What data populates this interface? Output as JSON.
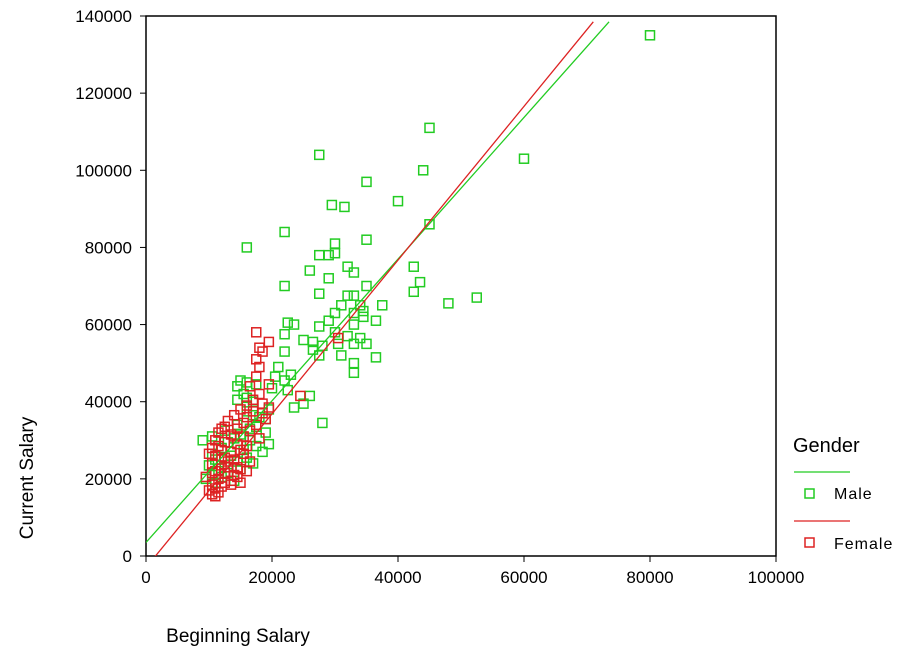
{
  "chart_data": {
    "type": "scatter",
    "title": "",
    "xlabel": "Beginning Salary",
    "ylabel": "Current Salary",
    "xlim": [
      0,
      100000
    ],
    "ylim": [
      0,
      140000
    ],
    "xticks": [
      0,
      20000,
      40000,
      60000,
      80000,
      100000
    ],
    "yticks": [
      0,
      20000,
      40000,
      60000,
      80000,
      100000,
      120000,
      140000
    ],
    "grid": false,
    "legend": {
      "title": "Gender",
      "position": "right"
    },
    "series": [
      {
        "name": "Male",
        "color": "#22cc22",
        "fit_line": {
          "x": [
            0,
            73500
          ],
          "y": [
            3500,
            138500
          ]
        },
        "points": [
          [
            80000,
            135000
          ],
          [
            45000,
            111000
          ],
          [
            27500,
            104000
          ],
          [
            60000,
            103000
          ],
          [
            44000,
            100000
          ],
          [
            35000,
            97000
          ],
          [
            40000,
            92000
          ],
          [
            29500,
            91000
          ],
          [
            31500,
            90500
          ],
          [
            45000,
            86000
          ],
          [
            22000,
            84000
          ],
          [
            35000,
            82000
          ],
          [
            30000,
            81000
          ],
          [
            16000,
            80000
          ],
          [
            29000,
            78000
          ],
          [
            27500,
            78000
          ],
          [
            30000,
            78500
          ],
          [
            32000,
            75000
          ],
          [
            42500,
            75000
          ],
          [
            26000,
            74000
          ],
          [
            33000,
            73500
          ],
          [
            29000,
            72000
          ],
          [
            43500,
            71000
          ],
          [
            22000,
            70000
          ],
          [
            35000,
            70000
          ],
          [
            42500,
            68500
          ],
          [
            27500,
            68000
          ],
          [
            32000,
            67500
          ],
          [
            33000,
            67500
          ],
          [
            52500,
            67000
          ],
          [
            48000,
            65500
          ],
          [
            31000,
            65000
          ],
          [
            34000,
            65000
          ],
          [
            37500,
            65000
          ],
          [
            34500,
            63500
          ],
          [
            30000,
            63000
          ],
          [
            33000,
            63000
          ],
          [
            34500,
            62000
          ],
          [
            29000,
            61000
          ],
          [
            36500,
            61000
          ],
          [
            22500,
            60500
          ],
          [
            23500,
            60000
          ],
          [
            33000,
            60000
          ],
          [
            27500,
            59500
          ],
          [
            30000,
            58000
          ],
          [
            22000,
            57500
          ],
          [
            32000,
            57000
          ],
          [
            34000,
            56500
          ],
          [
            25000,
            56000
          ],
          [
            26500,
            55500
          ],
          [
            30500,
            55000
          ],
          [
            33000,
            55000
          ],
          [
            35000,
            55000
          ],
          [
            28000,
            54500
          ],
          [
            26500,
            53500
          ],
          [
            22000,
            53000
          ],
          [
            31000,
            52000
          ],
          [
            27500,
            52000
          ],
          [
            36500,
            51500
          ],
          [
            33000,
            50000
          ],
          [
            21000,
            49000
          ],
          [
            33000,
            47500
          ],
          [
            23000,
            47000
          ],
          [
            20500,
            46500
          ],
          [
            22000,
            45500
          ],
          [
            15000,
            45500
          ],
          [
            16000,
            45000
          ],
          [
            17500,
            44500
          ],
          [
            14500,
            44000
          ],
          [
            20000,
            43500
          ],
          [
            22500,
            43000
          ],
          [
            15500,
            42000
          ],
          [
            26000,
            41500
          ],
          [
            16000,
            41000
          ],
          [
            14500,
            40500
          ],
          [
            17000,
            40000
          ],
          [
            25000,
            39500
          ],
          [
            23500,
            38500
          ],
          [
            19500,
            38000
          ],
          [
            16000,
            37500
          ],
          [
            17000,
            36500
          ],
          [
            18000,
            36000
          ],
          [
            19000,
            35500
          ],
          [
            28000,
            34500
          ],
          [
            14500,
            34000
          ],
          [
            17500,
            33500
          ],
          [
            16500,
            33000
          ],
          [
            12500,
            32500
          ],
          [
            19000,
            32000
          ],
          [
            15000,
            31500
          ],
          [
            10500,
            31000
          ],
          [
            14000,
            30500
          ],
          [
            9000,
            30000
          ],
          [
            16500,
            30000
          ],
          [
            13000,
            29500
          ],
          [
            19500,
            29000
          ],
          [
            17500,
            28500
          ],
          [
            12000,
            28000
          ],
          [
            15500,
            27500
          ],
          [
            18500,
            27000
          ],
          [
            10500,
            26500
          ],
          [
            13500,
            26000
          ],
          [
            16000,
            25500
          ],
          [
            11000,
            25000
          ],
          [
            14500,
            24500
          ],
          [
            17000,
            24000
          ],
          [
            10000,
            23500
          ],
          [
            12500,
            23000
          ],
          [
            15000,
            22500
          ],
          [
            11500,
            22000
          ],
          [
            13000,
            21500
          ],
          [
            10500,
            21000
          ],
          [
            12000,
            20500
          ],
          [
            9500,
            20000
          ],
          [
            14000,
            19500
          ],
          [
            11000,
            19000
          ]
        ]
      },
      {
        "name": "Female",
        "color": "#dd2222",
        "fit_line": {
          "x": [
            0,
            71000
          ],
          "y": [
            -3000,
            138500
          ]
        },
        "points": [
          [
            17500,
            58000
          ],
          [
            30500,
            56500
          ],
          [
            19500,
            55500
          ],
          [
            18000,
            54000
          ],
          [
            18500,
            53000
          ],
          [
            17500,
            51000
          ],
          [
            18000,
            49000
          ],
          [
            17500,
            46500
          ],
          [
            19500,
            44500
          ],
          [
            16500,
            44000
          ],
          [
            18000,
            42000
          ],
          [
            24500,
            41500
          ],
          [
            17000,
            40500
          ],
          [
            18500,
            39500
          ],
          [
            16000,
            39000
          ],
          [
            19500,
            38500
          ],
          [
            15000,
            38000
          ],
          [
            17000,
            37500
          ],
          [
            18500,
            37000
          ],
          [
            14000,
            36500
          ],
          [
            16000,
            36000
          ],
          [
            19000,
            35500
          ],
          [
            13000,
            35000
          ],
          [
            15500,
            34500
          ],
          [
            17500,
            34000
          ],
          [
            12500,
            33500
          ],
          [
            14500,
            33000
          ],
          [
            16500,
            32500
          ],
          [
            11500,
            32000
          ],
          [
            13500,
            31500
          ],
          [
            15500,
            31000
          ],
          [
            18000,
            30500
          ],
          [
            11000,
            30000
          ],
          [
            12500,
            29500
          ],
          [
            14500,
            29000
          ],
          [
            16000,
            28500
          ],
          [
            10500,
            28000
          ],
          [
            12000,
            27500
          ],
          [
            13500,
            27000
          ],
          [
            15500,
            26500
          ],
          [
            11000,
            26000
          ],
          [
            12500,
            25500
          ],
          [
            14000,
            25000
          ],
          [
            16500,
            24500
          ],
          [
            10500,
            24000
          ],
          [
            12000,
            23500
          ],
          [
            13000,
            23000
          ],
          [
            15000,
            22500
          ],
          [
            11000,
            22000
          ],
          [
            12500,
            21500
          ],
          [
            14000,
            21000
          ],
          [
            9500,
            20500
          ],
          [
            11500,
            20000
          ],
          [
            13500,
            19500
          ],
          [
            15000,
            19000
          ],
          [
            10500,
            18500
          ],
          [
            12000,
            18000
          ],
          [
            11000,
            17500
          ],
          [
            10000,
            17000
          ],
          [
            11500,
            16500
          ],
          [
            10500,
            16000
          ],
          [
            11000,
            15500
          ],
          [
            12500,
            19000
          ],
          [
            14500,
            20500
          ],
          [
            13000,
            24500
          ],
          [
            10000,
            26500
          ],
          [
            11500,
            28500
          ],
          [
            14000,
            31000
          ],
          [
            12000,
            33000
          ],
          [
            15000,
            27500
          ],
          [
            16000,
            22000
          ],
          [
            13500,
            18500
          ],
          [
            10500,
            21500
          ],
          [
            12000,
            25000
          ],
          [
            14500,
            23000
          ]
        ]
      }
    ]
  }
}
